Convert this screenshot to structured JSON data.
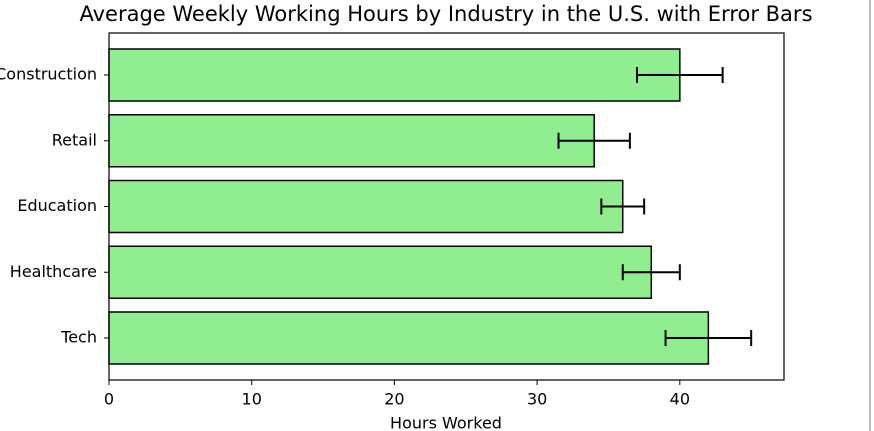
{
  "chart_data": {
    "type": "hbar",
    "title": "Average Weekly Working Hours by Industry in the U.S. with Error Bars",
    "xlabel": "Hours Worked",
    "categories": [
      "Construction",
      "Retail",
      "Education",
      "Healthcare",
      "Tech"
    ],
    "values": [
      40,
      34,
      36,
      38,
      42
    ],
    "errors": [
      3,
      2.5,
      1.5,
      2,
      3
    ],
    "color": "#90ee90",
    "edgecolor": "#000000",
    "errorcolor": "#000000",
    "xlim": [
      0,
      47.3
    ],
    "xticks": [
      0,
      10,
      20,
      30,
      40
    ],
    "grid": false
  }
}
